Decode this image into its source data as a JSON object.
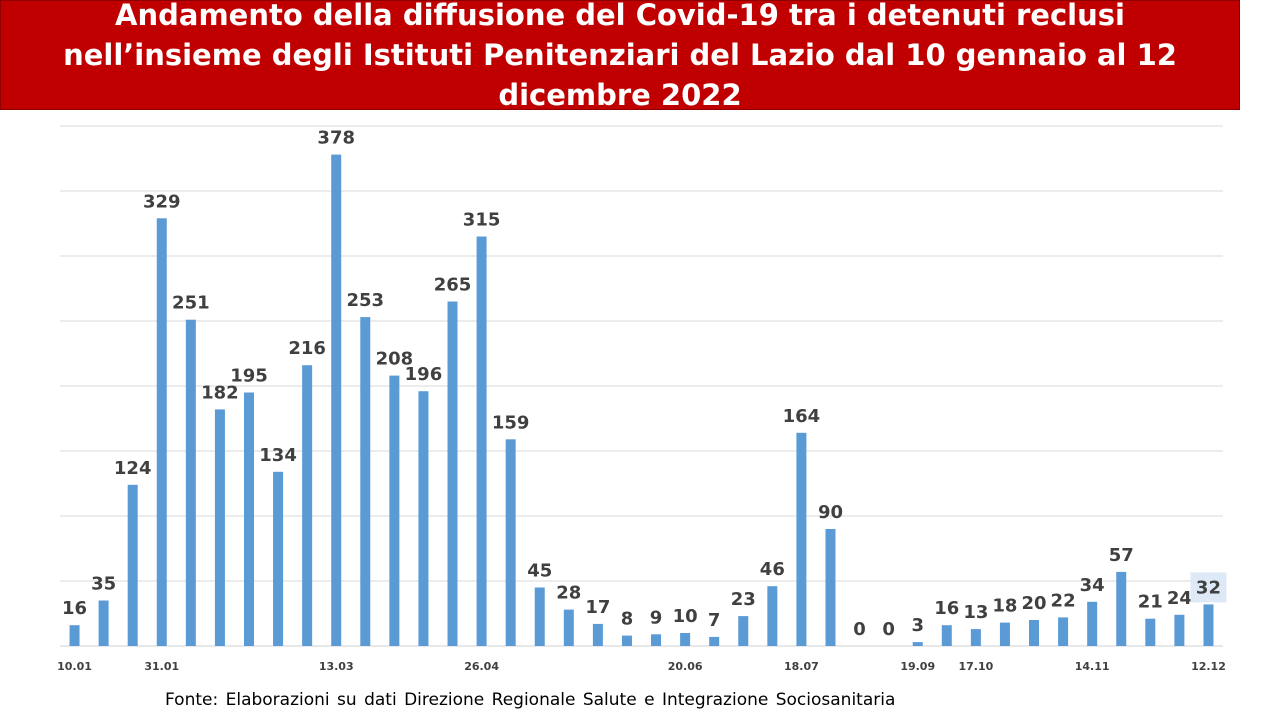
{
  "title": "Andamento della diffusione del Covid-19 tra i detenuti reclusi nell’insieme degli Istituti Penitenziari del Lazio dal 10 gennaio al 12 dicembre 2022",
  "source": "Fonte: Elaborazioni su dati Direzione Regionale Salute e Integrazione Sociosanitaria",
  "colors": {
    "bar": "#5b9bd5",
    "title_bg": "#c00000",
    "highlight": "#dde9f6",
    "grid": "#d9d9d9"
  },
  "chart_data": {
    "type": "bar",
    "title": "Andamento della diffusione del Covid-19 tra i detenuti reclusi nell’insieme degli Istituti Penitenziari del Lazio dal 10 gennaio al 12 dicembre 2022",
    "xlabel": "",
    "ylabel": "",
    "ylim": [
      0,
      400
    ],
    "grid": true,
    "legend": "none",
    "values": [
      16,
      35,
      124,
      329,
      251,
      182,
      195,
      134,
      216,
      378,
      253,
      208,
      196,
      265,
      315,
      159,
      45,
      28,
      17,
      8,
      9,
      10,
      7,
      23,
      46,
      164,
      90,
      0,
      0,
      3,
      16,
      13,
      18,
      20,
      22,
      34,
      57,
      21,
      24,
      32
    ],
    "x_tick_labels": [
      {
        "index": 0,
        "label": "10.01"
      },
      {
        "index": 3,
        "label": "31.01"
      },
      {
        "index": 9,
        "label": "13.03"
      },
      {
        "index": 14,
        "label": "26.04"
      },
      {
        "index": 21,
        "label": "20.06"
      },
      {
        "index": 25,
        "label": "18.07"
      },
      {
        "index": 29,
        "label": "19.09"
      },
      {
        "index": 31,
        "label": "17.10"
      },
      {
        "index": 35,
        "label": "14.11"
      },
      {
        "index": 39,
        "label": "12.12"
      }
    ],
    "highlighted_label_index": 39
  }
}
